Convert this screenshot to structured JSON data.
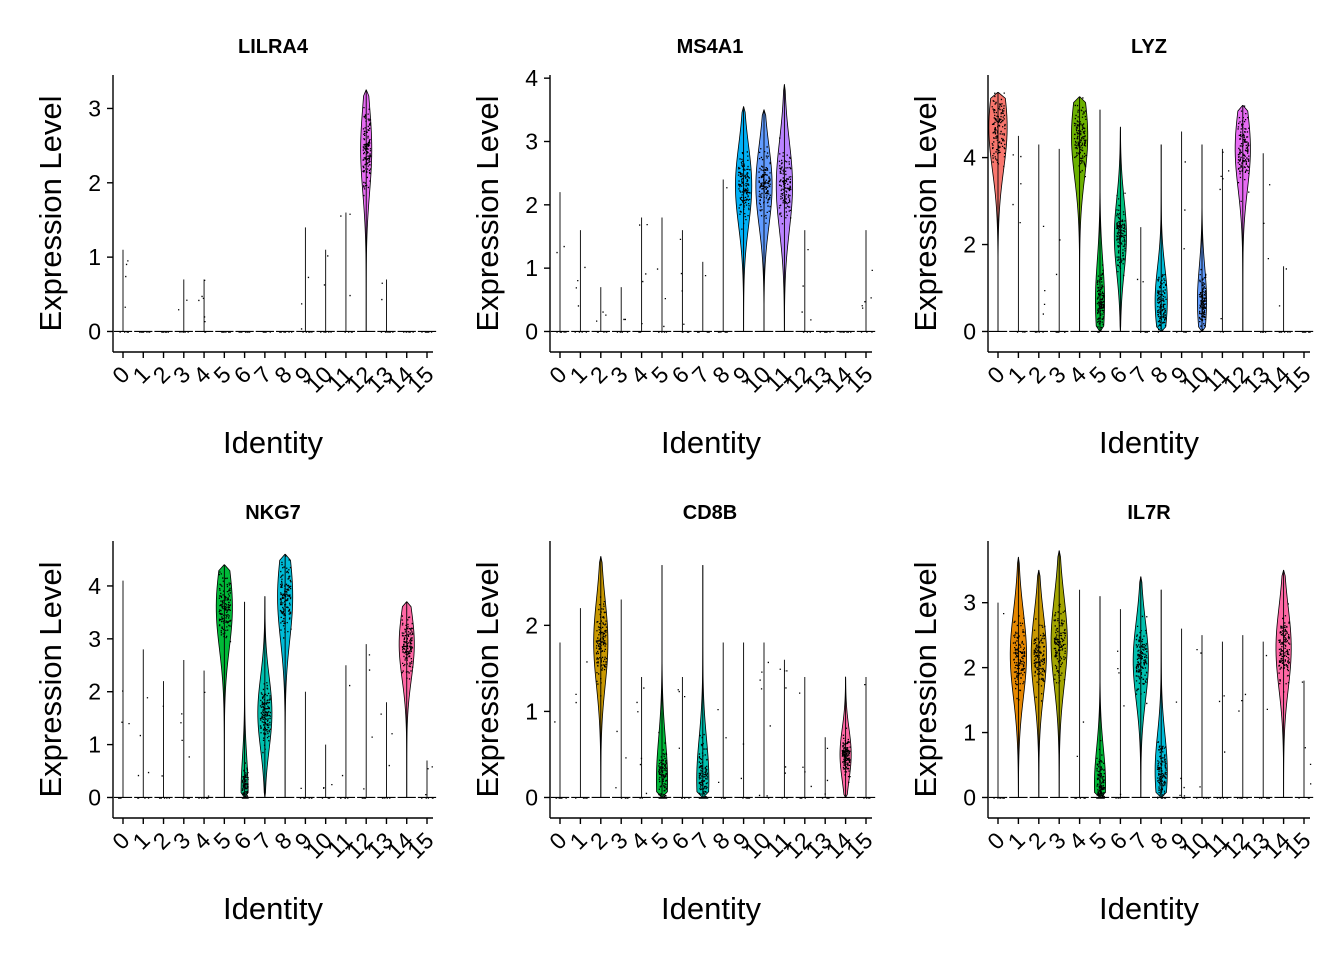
{
  "chart_data": [
    {
      "type": "violin",
      "title": "LILRA4",
      "ylabel": "Expression Level",
      "xlabel": "Identity",
      "ylim": [
        0,
        3.45
      ],
      "yticks": [
        0,
        1,
        2,
        3
      ],
      "categories": [
        "0",
        "1",
        "2",
        "3",
        "4",
        "5",
        "6",
        "7",
        "8",
        "9",
        "10",
        "11",
        "12",
        "13",
        "14",
        "15"
      ],
      "max": [
        1.1,
        0,
        0,
        0.7,
        0.7,
        0,
        0,
        0,
        0,
        1.4,
        1.1,
        1.6,
        3.25,
        0.7,
        0,
        0
      ],
      "median": [
        0,
        0,
        0,
        0,
        0,
        0,
        0,
        0,
        0,
        0,
        0,
        0,
        2.45,
        0,
        0,
        0
      ],
      "width": [
        0,
        0,
        0,
        0,
        0,
        0,
        0,
        0,
        0,
        0,
        0,
        0,
        0.55,
        0,
        0,
        0
      ]
    },
    {
      "type": "violin",
      "title": "MS4A1",
      "ylabel": "Expression Level",
      "xlabel": "Identity",
      "ylim": [
        0,
        4.05
      ],
      "yticks": [
        0,
        1,
        2,
        3,
        4
      ],
      "categories": [
        "0",
        "1",
        "2",
        "3",
        "4",
        "5",
        "6",
        "7",
        "8",
        "9",
        "10",
        "11",
        "12",
        "13",
        "14",
        "15"
      ],
      "max": [
        2.2,
        1.6,
        0.7,
        0.7,
        1.8,
        1.8,
        1.6,
        1.1,
        2.4,
        3.55,
        3.5,
        3.9,
        1.6,
        0,
        0,
        1.6
      ],
      "median": [
        0,
        0,
        0,
        0,
        0,
        0,
        0,
        0,
        0,
        2.3,
        2.3,
        2.3,
        0,
        0,
        0,
        0
      ],
      "width": [
        0,
        0,
        0,
        0,
        0,
        0,
        0,
        0,
        0,
        0.8,
        0.8,
        0.8,
        0,
        0,
        0,
        0
      ]
    },
    {
      "type": "violin",
      "title": "LYZ",
      "ylabel": "Expression Level",
      "xlabel": "Identity",
      "ylim": [
        0,
        5.9
      ],
      "yticks": [
        0,
        2,
        4
      ],
      "categories": [
        "0",
        "1",
        "2",
        "3",
        "4",
        "5",
        "6",
        "7",
        "8",
        "9",
        "10",
        "11",
        "12",
        "13",
        "14",
        "15"
      ],
      "max": [
        5.5,
        4.5,
        4.3,
        4.2,
        5.4,
        5.1,
        4.7,
        2.4,
        4.3,
        4.6,
        4.3,
        4.2,
        5.2,
        4.1,
        1.5,
        0
      ],
      "median": [
        4.7,
        0,
        0,
        0,
        4.5,
        0.7,
        2.2,
        0,
        0.7,
        0,
        0.7,
        0,
        4.2,
        0,
        0,
        0
      ],
      "width": [
        0.9,
        0,
        0,
        0,
        0.8,
        0.45,
        0.6,
        0,
        0.6,
        0,
        0.45,
        0,
        0.75,
        0,
        0,
        0
      ]
    },
    {
      "type": "violin",
      "title": "NKG7",
      "ylabel": "Expression Level",
      "xlabel": "Identity",
      "ylim": [
        0,
        4.85
      ],
      "yticks": [
        0,
        1,
        2,
        3,
        4
      ],
      "categories": [
        "0",
        "1",
        "2",
        "3",
        "4",
        "5",
        "6",
        "7",
        "8",
        "9",
        "10",
        "11",
        "12",
        "13",
        "14",
        "15"
      ],
      "max": [
        4.1,
        2.8,
        2.2,
        2.6,
        2.4,
        4.4,
        3.7,
        3.8,
        4.6,
        2.0,
        1.0,
        2.5,
        2.9,
        1.8,
        3.7,
        0.7
      ],
      "median": [
        0,
        0,
        0,
        0,
        0,
        3.6,
        0.1,
        1.6,
        3.8,
        0,
        0,
        0,
        0,
        0,
        2.9,
        0
      ],
      "width": [
        0,
        0,
        0,
        0,
        0,
        0.8,
        0.35,
        0.7,
        0.75,
        0,
        0,
        0,
        0,
        0,
        0.75,
        0
      ]
    },
    {
      "type": "violin",
      "title": "CD8B",
      "ylabel": "Expression Level",
      "xlabel": "Identity",
      "ylim": [
        0,
        2.98
      ],
      "yticks": [
        0,
        1,
        2
      ],
      "categories": [
        "0",
        "1",
        "2",
        "3",
        "4",
        "5",
        "6",
        "7",
        "8",
        "9",
        "10",
        "11",
        "12",
        "13",
        "14",
        "15"
      ],
      "max": [
        1.8,
        2.2,
        2.8,
        2.3,
        1.4,
        2.7,
        1.4,
        2.7,
        1.8,
        1.8,
        1.8,
        1.6,
        1.4,
        0.7,
        1.4,
        1.4
      ],
      "median": [
        0,
        0,
        1.8,
        0,
        0,
        0.2,
        0,
        0.2,
        0,
        0,
        0,
        0,
        0,
        0,
        0.5,
        0
      ],
      "width": [
        0,
        0,
        0.7,
        0,
        0,
        0.55,
        0,
        0.6,
        0,
        0,
        0,
        0,
        0,
        0,
        0.55,
        0
      ]
    },
    {
      "type": "violin",
      "title": "IL7R",
      "ylabel": "Expression Level",
      "xlabel": "Identity",
      "ylim": [
        0,
        3.95
      ],
      "yticks": [
        0,
        1,
        2,
        3
      ],
      "categories": [
        "0",
        "1",
        "2",
        "3",
        "4",
        "5",
        "6",
        "7",
        "8",
        "9",
        "10",
        "11",
        "12",
        "13",
        "14",
        "15"
      ],
      "max": [
        3.0,
        3.7,
        3.5,
        3.8,
        3.2,
        3.1,
        2.9,
        3.4,
        3.2,
        2.6,
        2.5,
        2.4,
        2.5,
        2.4,
        3.5,
        1.8
      ],
      "median": [
        0,
        2.2,
        2.2,
        2.4,
        0,
        0.2,
        0,
        2.1,
        0.4,
        0,
        0,
        0,
        0,
        0,
        2.3,
        0
      ],
      "width": [
        0,
        0.8,
        0.75,
        0.8,
        0,
        0.55,
        0,
        0.75,
        0.6,
        0,
        0,
        0,
        0,
        0,
        0.75,
        0
      ]
    }
  ],
  "colors": [
    "#F8766D",
    "#E58700",
    "#C99800",
    "#A3A500",
    "#6BB100",
    "#00BA38",
    "#00BF7D",
    "#00C0AF",
    "#00BCD8",
    "#00B0F6",
    "#619CFF",
    "#B983FF",
    "#E76BF3",
    "#FD61D1",
    "#FF67A4",
    "#FF6C91"
  ]
}
